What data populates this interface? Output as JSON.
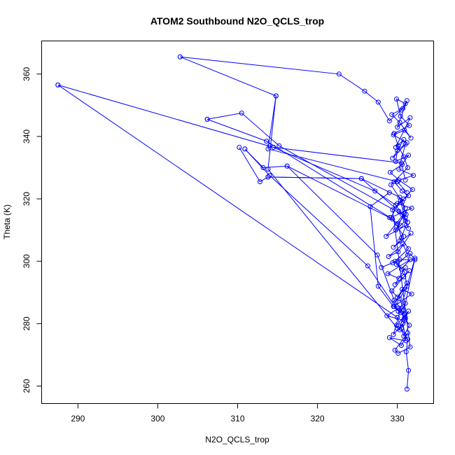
{
  "chart_data": {
    "type": "line",
    "title": "ATOM2 Southbound N2O_QCLS_trop",
    "xlabel": "N2O_QCLS_trop",
    "ylabel": "Theta (K)",
    "xlim": [
      285.5,
      334.5
    ],
    "ylim": [
      254.5,
      370.5
    ],
    "xticks": [
      290,
      300,
      310,
      320,
      330
    ],
    "yticks": [
      260,
      280,
      300,
      320,
      340,
      360
    ],
    "grid": false,
    "series_color": "#0000ff",
    "marker": "open-circle",
    "series": [
      {
        "x": [
          302.8,
          322.7,
          325.9,
          327.6,
          329.0,
          330.5,
          331.2,
          330.0,
          331.6,
          329.8,
          330.8,
          329.4,
          331.0,
          330.2,
          332.0,
          329.6,
          330.6,
          331.4,
          330.0,
          331.8,
          329.2,
          330.4,
          331.0,
          329.8,
          330.9,
          328.6,
          331.1,
          330.3,
          329.5,
          331.7,
          330.1,
          328.9,
          330.7,
          331.3,
          329.9,
          330.5,
          331.6,
          328.8,
          330.2,
          331.0,
          329.7,
          330.8,
          331.5,
          329.3,
          330.0,
          331.2,
          329.8,
          330.6,
          331.8,
          329.6,
          330.4,
          331.0,
          328.7,
          330.9,
          331.4,
          329.9,
          330.3,
          332.2,
          329.5,
          330.7,
          331.1,
          329.0,
          330.5,
          331.3,
          329.7,
          330.1,
          331.6,
          329.4,
          330.8,
          331.9,
          330.2,
          329.1,
          330.6,
          331.4,
          329.8,
          330.0,
          331.2,
          329.5,
          330.9,
          331.7,
          330.3,
          329.3,
          330.7,
          331.0,
          329.9,
          330.4,
          331.5,
          329.6,
          330.1,
          330.8,
          331.3,
          329.2,
          330.6,
          331.1,
          330.0,
          330.5,
          331.4,
          329.7,
          330.9,
          331.2,
          330.3,
          330.8,
          331.0,
          330.5,
          331.3,
          331.1,
          331.4,
          331.2
        ],
        "y": [
          365.5,
          360.0,
          354.5,
          351.0,
          345.0,
          348.5,
          351.5,
          343.0,
          346.0,
          336.5,
          339.0,
          333.0,
          337.5,
          329.5,
          327.5,
          325.5,
          322.5,
          321.0,
          318.5,
          317.0,
          314.0,
          319.5,
          313.0,
          310.0,
          315.5,
          308.0,
          311.5,
          306.5,
          304.5,
          309.0,
          303.0,
          301.5,
          305.5,
          302.0,
          299.0,
          297.5,
          300.5,
          296.0,
          294.5,
          298.0,
          292.5,
          295.0,
          297.0,
          290.5,
          288.5,
          293.0,
          287.0,
          291.0,
          289.5,
          285.5,
          283.5,
          286.5,
          282.5,
          281.0,
          284.0,
          279.5,
          278.0,
          301.0,
          276.5,
          280.0,
          274.5,
          275.5,
          273.0,
          277.0,
          271.5,
          270.5,
          272.5,
          316.5,
          320.0,
          323.0,
          326.0,
          328.5,
          331.0,
          334.0,
          332.0,
          335.5,
          338.0,
          340.5,
          342.0,
          339.5,
          344.5,
          347.0,
          349.0,
          350.5,
          352.0,
          346.5,
          343.5,
          341.0,
          337.0,
          333.5,
          330.0,
          324.5,
          319.0,
          315.0,
          312.0,
          307.5,
          304.0,
          300.0,
          296.5,
          292.0,
          288.0,
          284.5,
          281.5,
          278.5,
          275.0,
          271.0,
          265.0,
          259.0
        ]
      },
      {
        "x": [
          287.5,
          330.0,
          330.8,
          331.5,
          330.2
        ],
        "y": [
          356.5,
          282.0,
          276.0,
          279.5,
          285.0
        ]
      },
      {
        "x": [
          287.5,
          314.5,
          330.5,
          331.0
        ],
        "y": [
          356.5,
          336.5,
          331.5,
          326.0
        ]
      },
      {
        "x": [
          314.8,
          313.8,
          330.0,
          331.2
        ],
        "y": [
          353.0,
          336.0,
          325.5,
          322.0
        ]
      },
      {
        "x": [
          302.8,
          314.8,
          313.8,
          330.0
        ],
        "y": [
          365.5,
          353.0,
          329.5,
          278.5
        ]
      },
      {
        "x": [
          306.2,
          310.5,
          315.2,
          330.6,
          331.4
        ],
        "y": [
          345.5,
          347.5,
          337.0,
          315.0,
          310.5
        ]
      },
      {
        "x": [
          306.2,
          313.6,
          329.4,
          330.8
        ],
        "y": [
          345.5,
          338.5,
          313.5,
          308.0
        ]
      },
      {
        "x": [
          310.2,
          312.8,
          313.8,
          325.5,
          330.2,
          331.0
        ],
        "y": [
          336.5,
          325.5,
          327.0,
          326.5,
          316.0,
          314.0
        ]
      },
      {
        "x": [
          310.9,
          313.2,
          316.2,
          329.0,
          330.4
        ],
        "y": [
          336.0,
          330.0,
          330.5,
          314.0,
          311.5
        ]
      },
      {
        "x": [
          310.9,
          314.0,
          326.3,
          330.1
        ],
        "y": [
          336.0,
          327.5,
          298.5,
          284.0
        ]
      },
      {
        "x": [
          313.8,
          325.5,
          330.3,
          331.0
        ],
        "y": [
          327.0,
          326.5,
          320.5,
          317.0
        ]
      },
      {
        "x": [
          314.0,
          327.2,
          329.8,
          331.3
        ],
        "y": [
          337.0,
          322.5,
          318.0,
          312.5
        ]
      },
      {
        "x": [
          316.2,
          327.5,
          329.6,
          330.9
        ],
        "y": [
          330.5,
          302.0,
          287.5,
          283.0
        ]
      },
      {
        "x": [
          329.0,
          326.6,
          327.6,
          329.5,
          331.0
        ],
        "y": [
          322.0,
          317.5,
          292.0,
          285.5,
          282.0
        ]
      },
      {
        "x": [
          329.4,
          328.0,
          330.3,
          332.2,
          331.6
        ],
        "y": [
          299.5,
          298.0,
          300.5,
          300.5,
          302.5
        ]
      }
    ]
  }
}
